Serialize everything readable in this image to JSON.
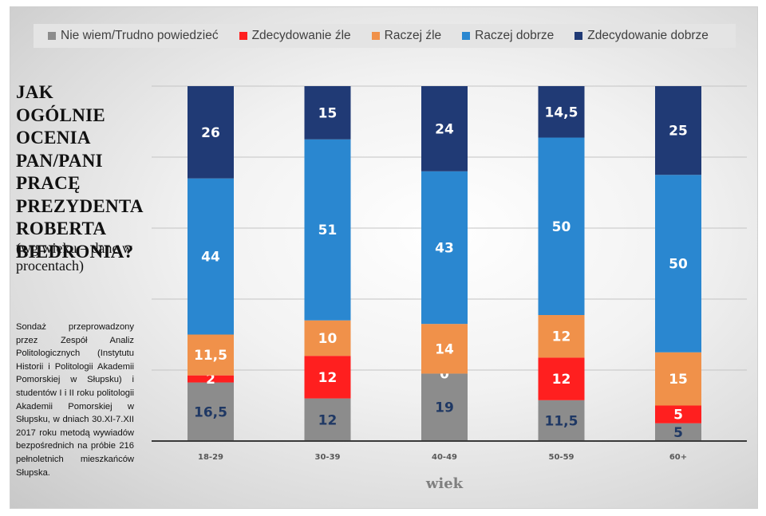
{
  "title": "JAK OGÓLNIE OCENIA PAN/PANI PRACĘ PREZYDENTA ROBERTA BIEDRONIA?",
  "subtitle": "(wg wieku – dane w procentach)",
  "note": "Sondaż przeprowadzony przez Zespół Analiz Politologicznych (Instytutu Historii i Politologii Akademii Pomorskiej w Słupsku) i studentów I i II roku politologii Akademii Pomorskiej w Słupsku, w dniach 30.XI-7.XII 2017 roku metodą wywiadów bezpośrednich na próbie 216 pełnoletnich mieszkańców Słupska.",
  "chart_data": {
    "type": "bar",
    "stacked": true,
    "xlabel": "wiek",
    "ylabel": "",
    "ylim": [
      0,
      100
    ],
    "grid": true,
    "legend_position": "top",
    "categories": [
      "18-29",
      "30-39",
      "40-49",
      "50-59",
      "60+"
    ],
    "series": [
      {
        "name": "Nie wiem/Trudno powiedzieć",
        "color": "#8c8c8c",
        "label_color": "#1f3864",
        "values": [
          16.5,
          12,
          19,
          11.5,
          5
        ],
        "labels": [
          "16,5",
          "12",
          "19",
          "11,5",
          "5"
        ]
      },
      {
        "name": "Zdecydowanie źle",
        "color": "#ff1f1f",
        "label_color": "#ffffff",
        "values": [
          2,
          12,
          0,
          12,
          5
        ],
        "labels": [
          "2",
          "12",
          "0",
          "12",
          "5"
        ]
      },
      {
        "name": "Raczej źle",
        "color": "#f0914a",
        "label_color": "#ffffff",
        "values": [
          11.5,
          10,
          14,
          12,
          15
        ],
        "labels": [
          "11,5",
          "10",
          "14",
          "12",
          "15"
        ]
      },
      {
        "name": "Raczej dobrze",
        "color": "#2a87d0",
        "label_color": "#ffffff",
        "values": [
          44,
          51,
          43,
          50,
          50
        ],
        "labels": [
          "44",
          "51",
          "43",
          "50",
          "50"
        ]
      },
      {
        "name": "Zdecydowanie dobrze",
        "color": "#203a75",
        "label_color": "#ffffff",
        "values": [
          26,
          15,
          24,
          14.5,
          25
        ],
        "labels": [
          "26",
          "15",
          "24",
          "14,5",
          "25"
        ]
      }
    ]
  }
}
